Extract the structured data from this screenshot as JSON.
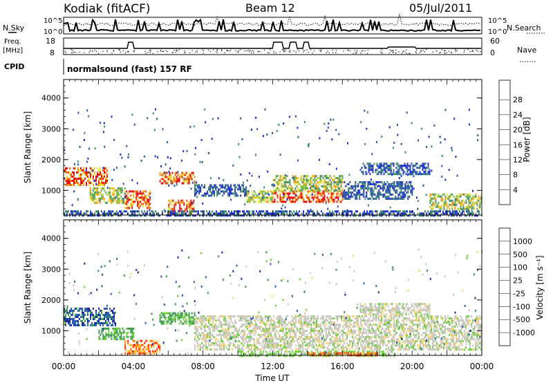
{
  "header": {
    "station": "Kodiak (fitACF)",
    "beam": "Beam 12",
    "date": "05/Jul/2011"
  },
  "top_panels": {
    "nsky_label": "N.Sky",
    "nsearch_label": "N.Search",
    "noise_ticks_left": [
      "10^5",
      "10^0"
    ],
    "noise_ticks_right": [
      "10^5",
      "10^0"
    ],
    "freq_label_1": "Freq.",
    "freq_label_2": "[MHz]",
    "freq_ticks": [
      "18",
      "8"
    ],
    "nave_label": "Nave",
    "nave_ticks": [
      "60",
      "0"
    ],
    "cpid_label": "CPID",
    "cpid_value": "normalsound (fast) 157 RF"
  },
  "colors": {
    "power_scale": [
      "#1f2bd6",
      "#2b55a8",
      "#3f8c6f",
      "#5aa85a",
      "#8cc63e",
      "#e8e034",
      "#f2a01c",
      "#f06010",
      "#e01010"
    ],
    "velocity_scale": [
      "#ff1a00",
      "#ff5500",
      "#ff9d00",
      "#ffd166",
      "#c8c8c0",
      "#6ad13a",
      "#3c9a4e",
      "#2a5fb0",
      "#1c2a9e"
    ]
  },
  "chart_data": [
    {
      "type": "heatmap",
      "title": "",
      "ylabel": "Slant Range [km]",
      "xlabel": "",
      "x_ticks": [
        "00:00",
        "04:00",
        "08:00",
        "12:00",
        "16:00",
        "20:00",
        "00:00"
      ],
      "y_ticks": [
        "1000",
        "2000",
        "3000",
        "4000"
      ],
      "ylim": [
        200,
        4600
      ],
      "xlim_hours": [
        0,
        24
      ],
      "colorbar": {
        "label": "Power [dB]",
        "ticks": [
          "4",
          "8",
          "12",
          "16",
          "20",
          "24",
          "28"
        ]
      },
      "regions": [
        {
          "t0": 0.0,
          "t1": 2.5,
          "r0": 1200,
          "r1": 1750,
          "level": "high"
        },
        {
          "t0": 1.5,
          "t1": 3.5,
          "r0": 600,
          "r1": 1100,
          "level": "mid"
        },
        {
          "t0": 3.5,
          "t1": 5.0,
          "r0": 400,
          "r1": 1000,
          "level": "high"
        },
        {
          "t0": 5.5,
          "t1": 7.5,
          "r0": 1200,
          "r1": 1600,
          "level": "high"
        },
        {
          "t0": 6.0,
          "t1": 7.5,
          "r0": 250,
          "r1": 700,
          "level": "high"
        },
        {
          "t0": 7.5,
          "t1": 10.5,
          "r0": 800,
          "r1": 1200,
          "level": "low"
        },
        {
          "t0": 10.5,
          "t1": 12.0,
          "r0": 600,
          "r1": 1000,
          "level": "mid"
        },
        {
          "t0": 12.0,
          "t1": 16.0,
          "r0": 600,
          "r1": 1000,
          "level": "high"
        },
        {
          "t0": 12.0,
          "t1": 16.0,
          "r0": 1000,
          "r1": 1500,
          "level": "mid"
        },
        {
          "t0": 16.0,
          "t1": 20.0,
          "r0": 700,
          "r1": 1300,
          "level": "low"
        },
        {
          "t0": 17.0,
          "t1": 21.0,
          "r0": 1500,
          "r1": 1900,
          "level": "low"
        },
        {
          "t0": 21.0,
          "t1": 24.0,
          "r0": 400,
          "r1": 900,
          "level": "mid"
        },
        {
          "t0": 0.0,
          "t1": 24.0,
          "r0": 200,
          "r1": 350,
          "level": "low"
        }
      ]
    },
    {
      "type": "heatmap",
      "title": "",
      "ylabel": "Slant Range [km]",
      "xlabel": "Time UT",
      "x_ticks": [
        "00:00",
        "04:00",
        "08:00",
        "12:00",
        "16:00",
        "20:00",
        "00:00"
      ],
      "y_ticks": [
        "1000",
        "2000",
        "3000",
        "4000"
      ],
      "ylim": [
        200,
        4600
      ],
      "xlim_hours": [
        0,
        24
      ],
      "colorbar": {
        "label": "Velocity [m s⁻¹]",
        "ticks": [
          "1000",
          "500",
          "100",
          "25",
          "-25",
          "-100",
          "-500",
          "-1000"
        ]
      },
      "regions": [
        {
          "t0": 0.0,
          "t1": 3.0,
          "r0": 1200,
          "r1": 1750,
          "level": "blue"
        },
        {
          "t0": 2.0,
          "t1": 4.0,
          "r0": 700,
          "r1": 1100,
          "level": "green"
        },
        {
          "t0": 3.5,
          "t1": 5.5,
          "r0": 250,
          "r1": 700,
          "level": "orange"
        },
        {
          "t0": 5.5,
          "t1": 7.5,
          "r0": 1200,
          "r1": 1600,
          "level": "green"
        },
        {
          "t0": 7.5,
          "t1": 24.0,
          "r0": 400,
          "r1": 1500,
          "level": "grey"
        },
        {
          "t0": 17.0,
          "t1": 21.0,
          "r0": 1500,
          "r1": 1900,
          "level": "grey"
        },
        {
          "t0": 10.0,
          "t1": 19.0,
          "r0": 200,
          "r1": 350,
          "level": "lightgreen"
        },
        {
          "t0": 14.0,
          "t1": 18.0,
          "r0": 200,
          "r1": 300,
          "level": "orange"
        }
      ]
    }
  ]
}
